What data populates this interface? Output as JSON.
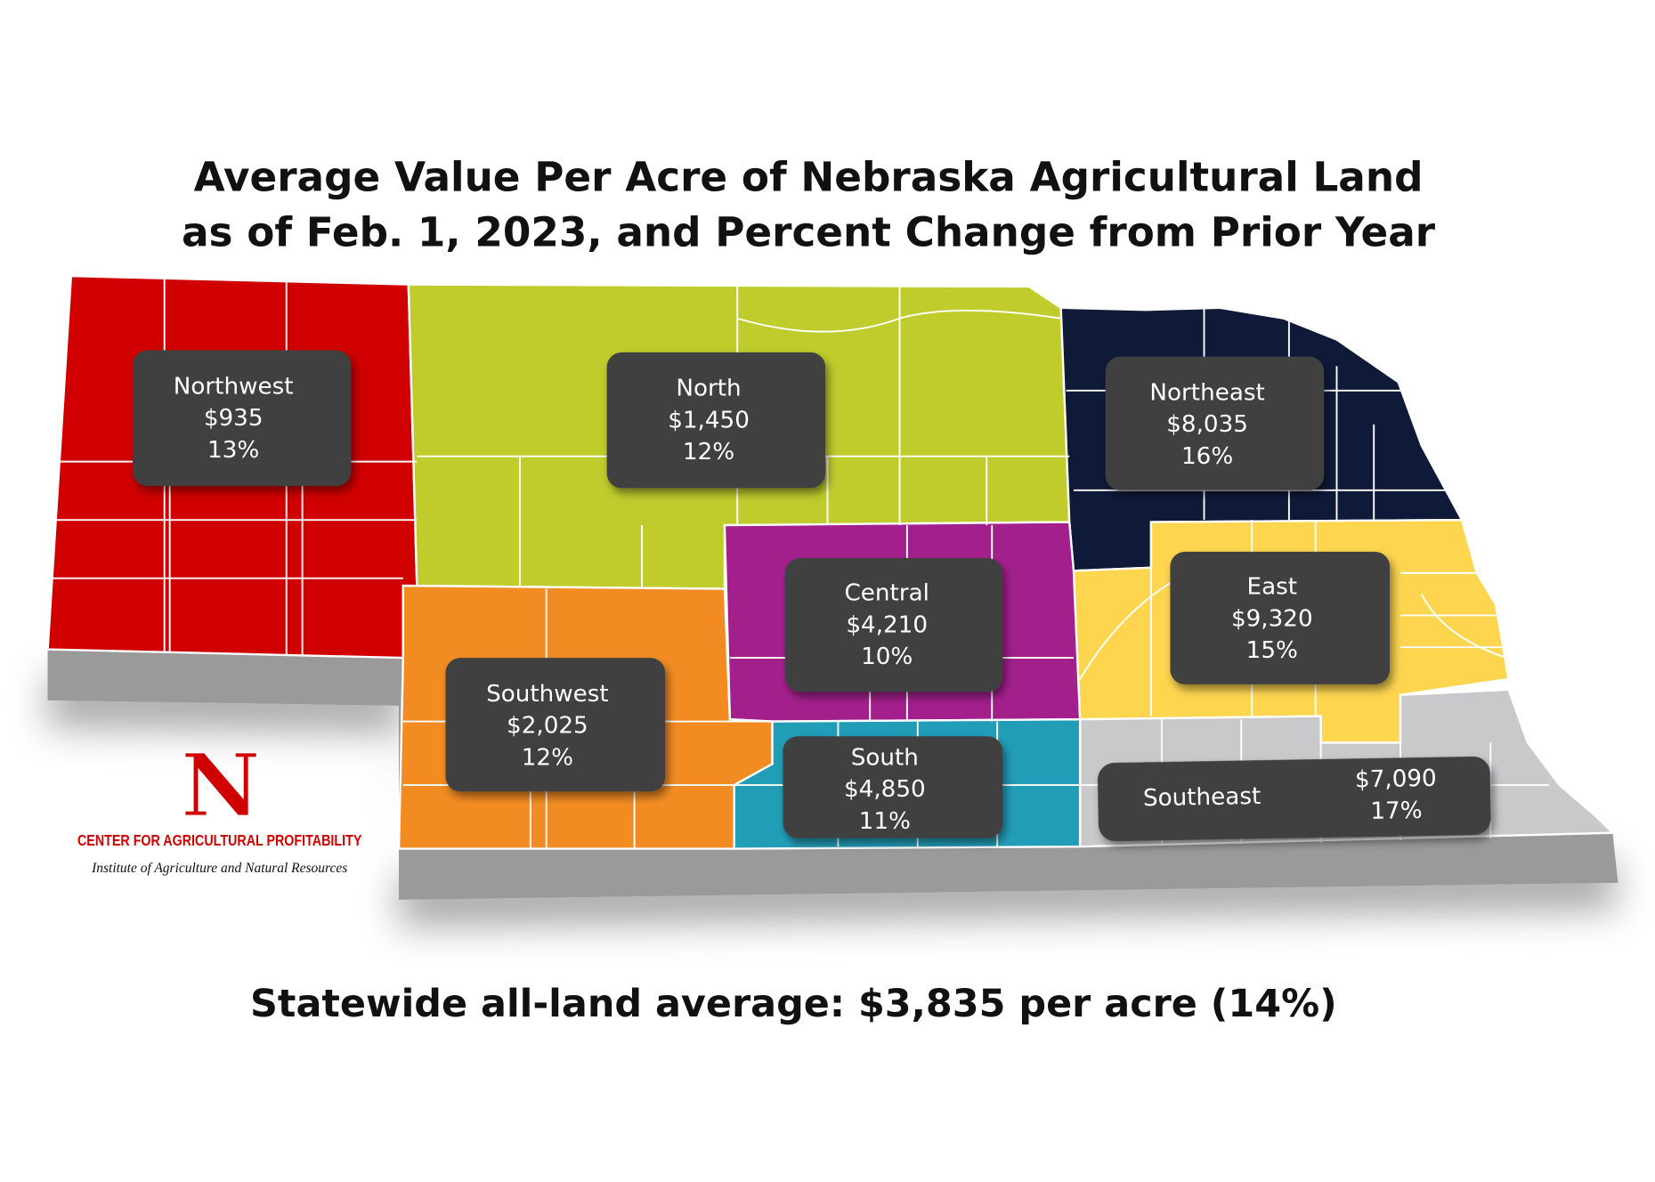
{
  "title": {
    "line1": "Average Value Per Acre of Nebraska Agricultural Land",
    "line2": "as of Feb. 1, 2023, and Percent Change from Prior Year"
  },
  "regions": {
    "northwest": {
      "name": "Northwest",
      "value": "$935",
      "change": "13%",
      "color": "#d00000"
    },
    "north": {
      "name": "North",
      "value": "$1,450",
      "change": "12%",
      "color": "#bfcc2c"
    },
    "northeast": {
      "name": "Northeast",
      "value": "$8,035",
      "change": "16%",
      "color": "#0f1a38"
    },
    "central": {
      "name": "Central",
      "value": "$4,210",
      "change": "10%",
      "color": "#a3208c"
    },
    "east": {
      "name": "East",
      "value": "$9,320",
      "change": "15%",
      "color": "#fdd54f"
    },
    "southwest": {
      "name": "Southwest",
      "value": "$2,025",
      "change": "12%",
      "color": "#f28c22"
    },
    "south": {
      "name": "South",
      "value": "$4,850",
      "change": "11%",
      "color": "#229db8"
    },
    "southeast": {
      "name": "Southeast",
      "value": "$7,090",
      "change": "17%",
      "color": "#c9c9cb"
    }
  },
  "footer": {
    "statewide": "Statewide all-land average: $3,835 per acre (14%)"
  },
  "logo": {
    "letter": "N",
    "center": "CENTER FOR AGRICULTURAL PROFITABILITY",
    "institute": "Institute of Agriculture and Natural Resources",
    "color": "#d00000"
  }
}
